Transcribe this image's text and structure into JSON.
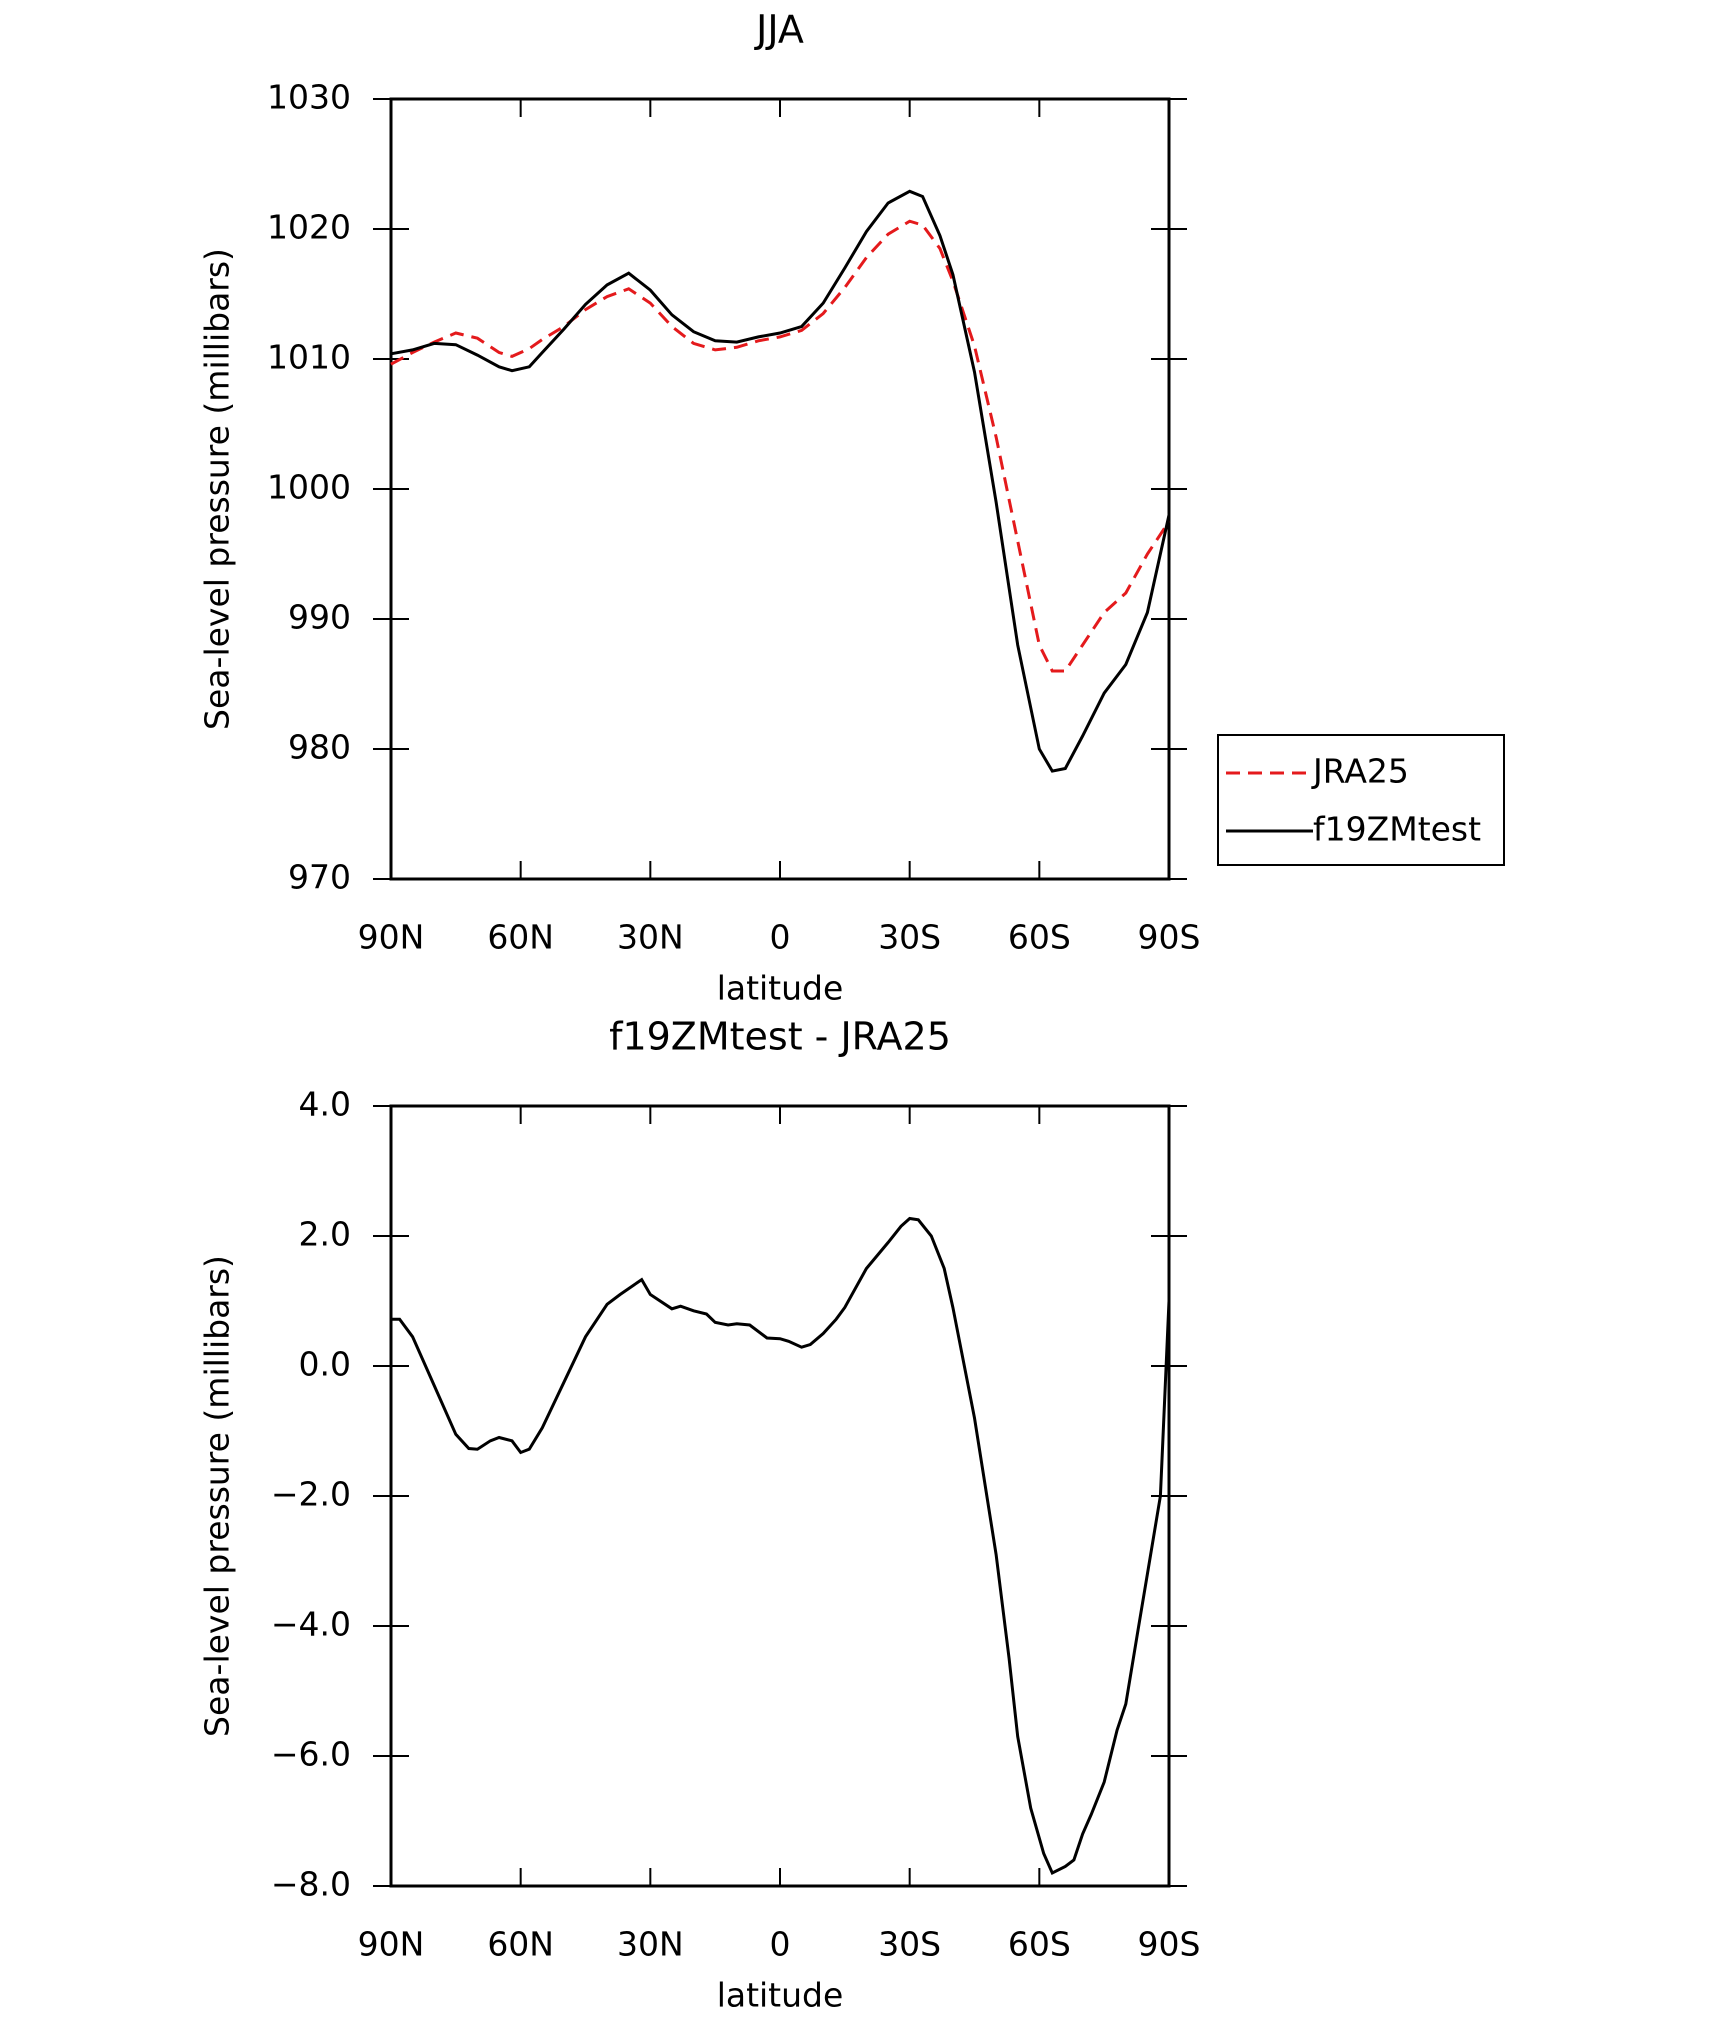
{
  "chart_data": [
    {
      "type": "line",
      "title": "JJA",
      "x_label": "latitude",
      "y_label": "Sea-level pressure (millibars)",
      "x": [
        90,
        85,
        80,
        75,
        70,
        65,
        62,
        58,
        55,
        50,
        45,
        40,
        35,
        30,
        25,
        20,
        15,
        10,
        5,
        0,
        -5,
        -10,
        -15,
        -20,
        -25,
        -30,
        -33,
        -37,
        -40,
        -45,
        -50,
        -55,
        -60,
        -63,
        -66,
        -70,
        -75,
        -80,
        -85,
        -90
      ],
      "series": [
        {
          "name": "JRA25",
          "color": "#e41a1c",
          "line_style": "dashed",
          "values": [
            1009.6,
            1010.5,
            1011.3,
            1012,
            1011.6,
            1010.5,
            1010.2,
            1010.8,
            1011.5,
            1012.5,
            1013.8,
            1014.8,
            1015.4,
            1014.3,
            1012.5,
            1011.2,
            1010.7,
            1010.9,
            1011.4,
            1011.7,
            1012.2,
            1013.5,
            1015.5,
            1017.8,
            1019.6,
            1020.6,
            1020.3,
            1018.5,
            1016,
            1011,
            1004,
            996,
            988,
            986,
            986,
            988,
            990.5,
            992,
            995,
            997.5
          ]
        },
        {
          "name": "f19ZMtest",
          "color": "#000000",
          "line_style": "solid",
          "values": [
            1010.4,
            1010.7,
            1011.2,
            1011.1,
            1010.3,
            1009.4,
            1009.1,
            1009.4,
            1010.5,
            1012.3,
            1014.2,
            1015.7,
            1016.6,
            1015.3,
            1013.4,
            1012.1,
            1011.4,
            1011.3,
            1011.7,
            1012,
            1012.5,
            1014.3,
            1017,
            1019.8,
            1022,
            1022.9,
            1022.5,
            1019.5,
            1016.5,
            1009,
            999,
            988,
            980,
            978.3,
            978.5,
            981,
            984.3,
            986.5,
            990.5,
            998
          ]
        }
      ],
      "xlim": [
        90,
        -90
      ],
      "xticks": [
        {
          "value": 90,
          "label": "90N"
        },
        {
          "value": 60,
          "label": "60N"
        },
        {
          "value": 30,
          "label": "30N"
        },
        0,
        {
          "value": -30,
          "label": "30S"
        },
        {
          "value": -60,
          "label": "60S"
        },
        {
          "value": -90,
          "label": "90S"
        }
      ],
      "ylim": [
        970,
        1030
      ],
      "yticks": [
        970,
        980,
        990,
        1000,
        1010,
        1020,
        1030
      ],
      "legend": "right"
    },
    {
      "type": "line",
      "title": "f19ZMtest - JRA25",
      "x_label": "latitude",
      "y_label": "Sea-level pressure (millibars)",
      "x": [
        90,
        88,
        85,
        80,
        75,
        72,
        70,
        67,
        65,
        62,
        60,
        58,
        55,
        50,
        45,
        40,
        37,
        32,
        30,
        25,
        23,
        20,
        17,
        15,
        12,
        10,
        7,
        3,
        0,
        -2,
        -5,
        -7,
        -10,
        -13,
        -15,
        -20,
        -25,
        -28,
        -30,
        -32,
        -35,
        -38,
        -40,
        -45,
        -50,
        -53,
        -55,
        -58,
        -61,
        -63,
        -66,
        -68,
        -70,
        -72,
        -75,
        -78,
        -80,
        -83,
        -85,
        -88,
        -90
      ],
      "color": "#000000",
      "values": [
        0.72,
        0.72,
        0.45,
        -0.3,
        -1.05,
        -1.27,
        -1.28,
        -1.15,
        -1.1,
        -1.15,
        -1.33,
        -1.28,
        -0.95,
        -0.25,
        0.45,
        0.95,
        1.1,
        1.33,
        1.1,
        0.88,
        0.92,
        0.85,
        0.8,
        0.67,
        0.63,
        0.65,
        0.63,
        0.43,
        0.42,
        0.38,
        0.29,
        0.33,
        0.5,
        0.72,
        0.9,
        1.5,
        1.9,
        2.15,
        2.27,
        2.25,
        2.0,
        1.5,
        0.9,
        -0.8,
        -2.9,
        -4.5,
        -5.7,
        -6.8,
        -7.5,
        -7.8,
        -7.7,
        -7.6,
        -7.2,
        -6.9,
        -6.4,
        -5.6,
        -5.2,
        -4.0,
        -3.2,
        -2.0,
        1.0
      ],
      "xlim": [
        90,
        -90
      ],
      "xticks": [
        {
          "value": 90,
          "label": "90N"
        },
        {
          "value": 60,
          "label": "60N"
        },
        {
          "value": 30,
          "label": "30N"
        },
        0,
        {
          "value": -30,
          "label": "30S"
        },
        {
          "value": -60,
          "label": "60S"
        },
        {
          "value": -90,
          "label": "90S"
        }
      ],
      "ylim": [
        -8,
        4
      ],
      "yticks": [
        {
          "value": -8,
          "label": "−8.0"
        },
        {
          "value": -6,
          "label": "−6.0"
        },
        {
          "value": -4,
          "label": "−4.0"
        },
        {
          "value": -2,
          "label": "−2.0"
        },
        {
          "value": 0,
          "label": "0.0"
        },
        {
          "value": 2,
          "label": "2.0"
        },
        {
          "value": 4,
          "label": "4.0"
        }
      ]
    }
  ]
}
